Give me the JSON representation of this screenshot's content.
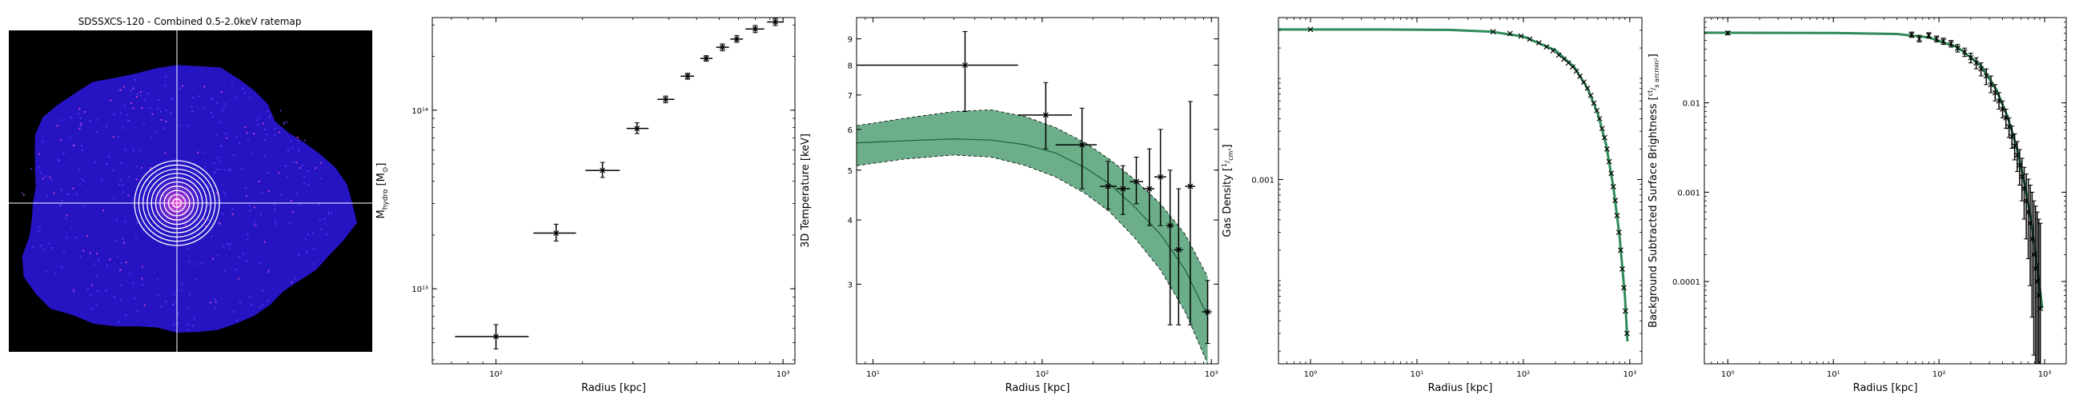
{
  "panels": {
    "image": {
      "title": "SDSSXCS-120 - Combined 0.5-2.0keV ratemap",
      "colors": {
        "background": "#000000",
        "cluster": "#2a16d8",
        "core": "#ff56d2",
        "annuli": "#ffffff",
        "crosshair": "#ffffff"
      },
      "annuli_count": 10
    }
  },
  "chart_data": [
    {
      "type": "scatter",
      "name": "hydrostatic-mass",
      "xscale": "log",
      "yscale": "log",
      "xlabel": "Radius [kpc]",
      "ylabel": "M",
      "ylabel_sub": "hydro",
      "ylabel_unit": "[M",
      "ylabel_unit_sub": "⊙",
      "ylabel_unit_end": "]",
      "xlim": [
        60,
        1100
      ],
      "ylim": [
        3800000000000.0,
        330000000000000.0
      ],
      "xticks": [
        100,
        1000
      ],
      "xtick_labels": [
        "10²",
        "10³"
      ],
      "yticks": [
        10000000000000.0,
        100000000000000.0
      ],
      "ytick_labels": [
        "10¹³",
        "10¹⁴"
      ],
      "points": [
        {
          "x": 100,
          "xlo": 72,
          "xhi": 130,
          "y": 5400000000000.0,
          "ylo": 4600000000000.0,
          "yhi": 6300000000000.0
        },
        {
          "x": 162,
          "xlo": 135,
          "xhi": 190,
          "y": 20500000000000.0,
          "ylo": 18500000000000.0,
          "yhi": 23000000000000.0
        },
        {
          "x": 235,
          "xlo": 205,
          "xhi": 270,
          "y": 46000000000000.0,
          "ylo": 42000000000000.0,
          "yhi": 51000000000000.0
        },
        {
          "x": 310,
          "xlo": 285,
          "xhi": 340,
          "y": 79000000000000.0,
          "ylo": 74000000000000.0,
          "yhi": 85000000000000.0
        },
        {
          "x": 390,
          "xlo": 365,
          "xhi": 418,
          "y": 115000000000000.0,
          "ylo": 110000000000000.0,
          "yhi": 120000000000000.0
        },
        {
          "x": 465,
          "xlo": 440,
          "xhi": 490,
          "y": 155000000000000.0,
          "ylo": 149000000000000.0,
          "yhi": 161000000000000.0
        },
        {
          "x": 540,
          "xlo": 515,
          "xhi": 568,
          "y": 195000000000000.0,
          "ylo": 188000000000000.0,
          "yhi": 202000000000000.0
        },
        {
          "x": 615,
          "xlo": 585,
          "xhi": 648,
          "y": 225000000000000.0,
          "ylo": 215000000000000.0,
          "yhi": 235000000000000.0
        },
        {
          "x": 690,
          "xlo": 655,
          "xhi": 725,
          "y": 250000000000000.0,
          "ylo": 240000000000000.0,
          "yhi": 262000000000000.0
        },
        {
          "x": 800,
          "xlo": 740,
          "xhi": 860,
          "y": 285000000000000.0,
          "ylo": 272000000000000.0,
          "yhi": 298000000000000.0
        },
        {
          "x": 940,
          "xlo": 880,
          "xhi": 1005,
          "y": 312000000000000.0,
          "ylo": 298000000000000.0,
          "yhi": 326000000000000.0
        }
      ]
    },
    {
      "type": "line",
      "name": "3d-temperature",
      "xscale": "log",
      "yscale": "log",
      "xlabel": "Radius [kpc]",
      "ylabel": "3D Temperature [keV]",
      "xlim": [
        8,
        1100
      ],
      "ylim": [
        2.1,
        9.9
      ],
      "xticks": [
        10,
        100,
        1000
      ],
      "xtick_labels": [
        "10¹",
        "10²",
        "10³"
      ],
      "yticks": [
        3,
        4,
        5,
        6,
        7,
        8,
        9
      ],
      "ytick_labels": [
        "3",
        "4",
        "5",
        "6",
        "7",
        "8",
        "9"
      ],
      "band_color": "#2e8b57",
      "model": [
        {
          "x": 8,
          "y": 5.65,
          "lo": 5.1,
          "hi": 6.1
        },
        {
          "x": 15,
          "y": 5.7,
          "lo": 5.25,
          "hi": 6.3
        },
        {
          "x": 30,
          "y": 5.75,
          "lo": 5.35,
          "hi": 6.5
        },
        {
          "x": 50,
          "y": 5.72,
          "lo": 5.3,
          "hi": 6.55
        },
        {
          "x": 80,
          "y": 5.6,
          "lo": 5.1,
          "hi": 6.35
        },
        {
          "x": 120,
          "y": 5.4,
          "lo": 4.85,
          "hi": 6.05
        },
        {
          "x": 180,
          "y": 5.05,
          "lo": 4.5,
          "hi": 5.65
        },
        {
          "x": 250,
          "y": 4.7,
          "lo": 4.15,
          "hi": 5.25
        },
        {
          "x": 350,
          "y": 4.25,
          "lo": 3.7,
          "hi": 4.8
        },
        {
          "x": 500,
          "y": 3.75,
          "lo": 3.2,
          "hi": 4.3
        },
        {
          "x": 700,
          "y": 3.2,
          "lo": 2.65,
          "hi": 3.75
        },
        {
          "x": 950,
          "y": 2.6,
          "lo": 2.1,
          "hi": 3.1
        }
      ],
      "points": [
        {
          "x": 35,
          "xlo": 8,
          "xhi": 72,
          "y": 8.0,
          "ylo": 6.5,
          "yhi": 9.3
        },
        {
          "x": 105,
          "xlo": 72,
          "xhi": 150,
          "y": 6.4,
          "ylo": 5.5,
          "yhi": 7.4
        },
        {
          "x": 172,
          "xlo": 120,
          "xhi": 210,
          "y": 5.6,
          "ylo": 4.6,
          "yhi": 6.6
        },
        {
          "x": 245,
          "xlo": 220,
          "xhi": 275,
          "y": 4.65,
          "ylo": 4.2,
          "yhi": 5.2
        },
        {
          "x": 300,
          "xlo": 275,
          "xhi": 330,
          "y": 4.6,
          "ylo": 4.1,
          "yhi": 5.1
        },
        {
          "x": 360,
          "xlo": 330,
          "xhi": 395,
          "y": 4.75,
          "ylo": 4.3,
          "yhi": 5.3
        },
        {
          "x": 430,
          "xlo": 395,
          "xhi": 460,
          "y": 4.6,
          "ylo": 3.9,
          "yhi": 5.5
        },
        {
          "x": 500,
          "xlo": 460,
          "xhi": 540,
          "y": 4.85,
          "ylo": 3.9,
          "yhi": 6.0
        },
        {
          "x": 570,
          "xlo": 540,
          "xhi": 600,
          "y": 3.9,
          "ylo": 2.5,
          "yhi": 5.0
        },
        {
          "x": 640,
          "xlo": 600,
          "xhi": 680,
          "y": 3.5,
          "ylo": 2.5,
          "yhi": 4.6
        },
        {
          "x": 750,
          "xlo": 700,
          "xhi": 800,
          "y": 4.65,
          "ylo": 2.5,
          "yhi": 6.8
        },
        {
          "x": 950,
          "xlo": 880,
          "xhi": 1005,
          "y": 2.65,
          "ylo": 2.3,
          "yhi": 3.05
        }
      ]
    },
    {
      "type": "line",
      "name": "gas-density",
      "xscale": "log",
      "yscale": "log",
      "xlabel": "Radius [kpc]",
      "ylabel": "Gas Density",
      "ylabel_frac_num": "1",
      "ylabel_frac_den": "cm³",
      "xlim": [
        0.5,
        1300
      ],
      "ylim": [
        1.5e-05,
        0.04
      ],
      "xticks": [
        1,
        10,
        100,
        1000
      ],
      "xtick_labels": [
        "10⁰",
        "10¹",
        "10²",
        "10³"
      ],
      "yticks": [
        0.001
      ],
      "ytick_labels": [
        "0.001"
      ],
      "line_color": "#2e8b57",
      "model": [
        {
          "x": 0.5,
          "y": 0.0305
        },
        {
          "x": 5,
          "y": 0.0305
        },
        {
          "x": 20,
          "y": 0.0302
        },
        {
          "x": 50,
          "y": 0.029
        },
        {
          "x": 100,
          "y": 0.026
        },
        {
          "x": 200,
          "y": 0.019
        },
        {
          "x": 300,
          "y": 0.013
        },
        {
          "x": 400,
          "y": 0.008
        },
        {
          "x": 500,
          "y": 0.0045
        },
        {
          "x": 600,
          "y": 0.0022
        },
        {
          "x": 700,
          "y": 0.00085
        },
        {
          "x": 800,
          "y": 0.00028
        },
        {
          "x": 900,
          "y": 7e-05
        },
        {
          "x": 950,
          "y": 2.5e-05
        }
      ],
      "points": [
        {
          "x": 1,
          "y": 0.0305
        },
        {
          "x": 52,
          "y": 0.029
        },
        {
          "x": 75,
          "y": 0.0278
        },
        {
          "x": 95,
          "y": 0.0262
        },
        {
          "x": 115,
          "y": 0.0245
        },
        {
          "x": 140,
          "y": 0.0225
        },
        {
          "x": 165,
          "y": 0.0205
        },
        {
          "x": 190,
          "y": 0.0188
        },
        {
          "x": 215,
          "y": 0.017
        },
        {
          "x": 240,
          "y": 0.0155
        },
        {
          "x": 265,
          "y": 0.0142
        },
        {
          "x": 290,
          "y": 0.013
        },
        {
          "x": 315,
          "y": 0.0118
        },
        {
          "x": 340,
          "y": 0.0105
        },
        {
          "x": 370,
          "y": 0.0092
        },
        {
          "x": 400,
          "y": 0.008
        },
        {
          "x": 430,
          "y": 0.0068
        },
        {
          "x": 460,
          "y": 0.0057
        },
        {
          "x": 490,
          "y": 0.0048
        },
        {
          "x": 520,
          "y": 0.004
        },
        {
          "x": 550,
          "y": 0.0032
        },
        {
          "x": 580,
          "y": 0.0026
        },
        {
          "x": 610,
          "y": 0.002
        },
        {
          "x": 640,
          "y": 0.0015
        },
        {
          "x": 670,
          "y": 0.00115
        },
        {
          "x": 700,
          "y": 0.00085
        },
        {
          "x": 730,
          "y": 0.00062
        },
        {
          "x": 760,
          "y": 0.00044
        },
        {
          "x": 790,
          "y": 0.0003
        },
        {
          "x": 820,
          "y": 0.0002
        },
        {
          "x": 850,
          "y": 0.00013
        },
        {
          "x": 880,
          "y": 8.5e-05
        },
        {
          "x": 910,
          "y": 5e-05
        },
        {
          "x": 940,
          "y": 3e-05
        }
      ]
    },
    {
      "type": "line",
      "name": "surface-brightness",
      "xscale": "log",
      "yscale": "log",
      "xlabel": "Radius [kpc]",
      "ylabel": "Background Subtracted Surface Brightness",
      "ylabel_frac_num": "ct",
      "ylabel_frac_den": "s arcmin²",
      "xlim": [
        0.6,
        1600
      ],
      "ylim": [
        1.2e-05,
        0.09
      ],
      "xticks": [
        1,
        10,
        100,
        1000
      ],
      "xtick_labels": [
        "10⁰",
        "10¹",
        "10²",
        "10³"
      ],
      "yticks": [
        0.01,
        0.001,
        0.0001
      ],
      "ytick_labels": [
        "0.01",
        "0.001",
        "0.0001"
      ],
      "line_color": "#2e8b57",
      "model": [
        {
          "x": 0.6,
          "y": 0.061
        },
        {
          "x": 10,
          "y": 0.0605
        },
        {
          "x": 40,
          "y": 0.059
        },
        {
          "x": 80,
          "y": 0.054
        },
        {
          "x": 150,
          "y": 0.042
        },
        {
          "x": 250,
          "y": 0.026
        },
        {
          "x": 350,
          "y": 0.014
        },
        {
          "x": 450,
          "y": 0.0068
        },
        {
          "x": 550,
          "y": 0.003
        },
        {
          "x": 650,
          "y": 0.0012
        },
        {
          "x": 750,
          "y": 0.00045
        },
        {
          "x": 850,
          "y": 0.00015
        },
        {
          "x": 950,
          "y": 5e-05
        }
      ],
      "points": [
        {
          "x": 1,
          "y": 0.0605,
          "ylo": 0.058,
          "yhi": 0.063
        },
        {
          "x": 55,
          "y": 0.058,
          "ylo": 0.054,
          "yhi": 0.062
        },
        {
          "x": 65,
          "y": 0.052,
          "ylo": 0.048,
          "yhi": 0.057
        },
        {
          "x": 80,
          "y": 0.057,
          "ylo": 0.053,
          "yhi": 0.061
        },
        {
          "x": 95,
          "y": 0.052,
          "ylo": 0.048,
          "yhi": 0.056
        },
        {
          "x": 110,
          "y": 0.049,
          "ylo": 0.045,
          "yhi": 0.053
        },
        {
          "x": 130,
          "y": 0.046,
          "ylo": 0.042,
          "yhi": 0.05
        },
        {
          "x": 150,
          "y": 0.041,
          "ylo": 0.037,
          "yhi": 0.045
        },
        {
          "x": 175,
          "y": 0.037,
          "ylo": 0.033,
          "yhi": 0.041
        },
        {
          "x": 200,
          "y": 0.032,
          "ylo": 0.028,
          "yhi": 0.036
        },
        {
          "x": 225,
          "y": 0.028,
          "ylo": 0.024,
          "yhi": 0.032
        },
        {
          "x": 250,
          "y": 0.024,
          "ylo": 0.02,
          "yhi": 0.028
        },
        {
          "x": 280,
          "y": 0.02,
          "ylo": 0.016,
          "yhi": 0.024
        },
        {
          "x": 310,
          "y": 0.016,
          "ylo": 0.013,
          "yhi": 0.02
        },
        {
          "x": 340,
          "y": 0.013,
          "ylo": 0.0105,
          "yhi": 0.016
        },
        {
          "x": 370,
          "y": 0.0105,
          "ylo": 0.0085,
          "yhi": 0.013
        },
        {
          "x": 400,
          "y": 0.0085,
          "ylo": 0.0068,
          "yhi": 0.0105
        },
        {
          "x": 430,
          "y": 0.0068,
          "ylo": 0.0052,
          "yhi": 0.0085
        },
        {
          "x": 460,
          "y": 0.0054,
          "ylo": 0.0041,
          "yhi": 0.0068
        },
        {
          "x": 490,
          "y": 0.0042,
          "ylo": 0.0031,
          "yhi": 0.0055
        },
        {
          "x": 520,
          "y": 0.0033,
          "ylo": 0.0023,
          "yhi": 0.0045
        },
        {
          "x": 550,
          "y": 0.0026,
          "ylo": 0.0017,
          "yhi": 0.0037
        },
        {
          "x": 580,
          "y": 0.002,
          "ylo": 0.0012,
          "yhi": 0.003
        },
        {
          "x": 610,
          "y": 0.0015,
          "ylo": 0.0008,
          "yhi": 0.0024
        },
        {
          "x": 640,
          "y": 0.0011,
          "ylo": 0.0005,
          "yhi": 0.0019
        },
        {
          "x": 670,
          "y": 0.0008,
          "ylo": 0.0003,
          "yhi": 0.0016
        },
        {
          "x": 700,
          "y": 0.0006,
          "ylo": 0.00018,
          "yhi": 0.0014
        },
        {
          "x": 730,
          "y": 0.00045,
          "ylo": 9e-05,
          "yhi": 0.0012
        },
        {
          "x": 760,
          "y": 0.0003,
          "ylo": 4e-05,
          "yhi": 0.001
        },
        {
          "x": 790,
          "y": 0.0002,
          "ylo": 1.5e-05,
          "yhi": 0.0008
        },
        {
          "x": 820,
          "y": 0.00014,
          "ylo": 1.2e-05,
          "yhi": 0.0007
        },
        {
          "x": 850,
          "y": 0.0001,
          "ylo": 1.2e-05,
          "yhi": 0.0006
        },
        {
          "x": 880,
          "y": 7e-05,
          "ylo": 1.2e-05,
          "yhi": 0.0005
        },
        {
          "x": 910,
          "y": 5e-05,
          "ylo": 1.2e-05,
          "yhi": 0.00045
        }
      ]
    }
  ]
}
